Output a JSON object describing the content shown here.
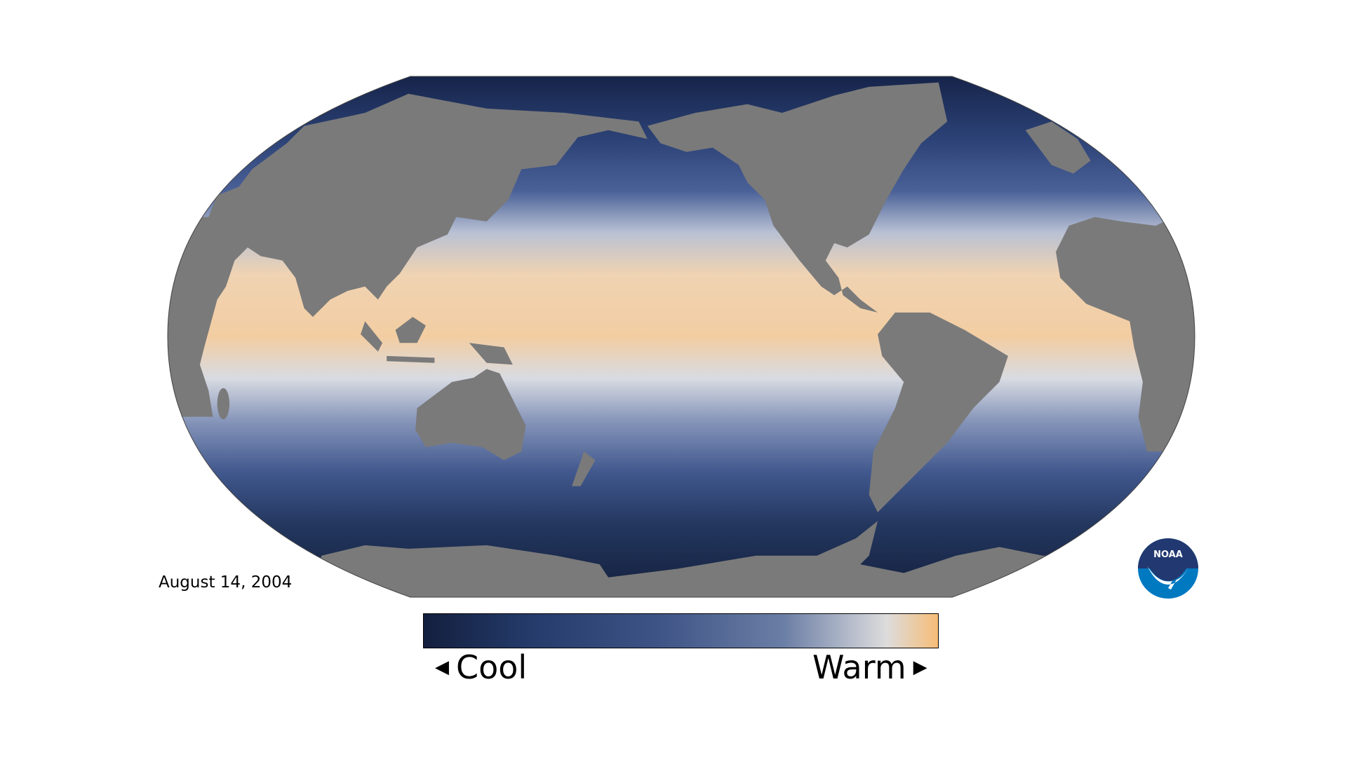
{
  "map": {
    "date": "August 14, 2004",
    "projection": "robinson",
    "land_color": "#7a7a7a",
    "ocean_colors": {
      "cold": "#16244a",
      "cool": "#3d5488",
      "neutral": "#d8dbe2",
      "warm": "#f6c996"
    }
  },
  "legend": {
    "cool_label": "Cool",
    "warm_label": "Warm",
    "cool_arrow_icon": "triangle-left",
    "warm_arrow_icon": "triangle-right",
    "gradient": [
      "#131f3e",
      "#243a69",
      "#3d5385",
      "#6b7ea5",
      "#b5bccb",
      "#dcdcdc",
      "#f7bd78"
    ]
  },
  "logo": {
    "text": "NOAA",
    "colors": {
      "top": "#213870",
      "bottom": "#0079c1"
    }
  }
}
